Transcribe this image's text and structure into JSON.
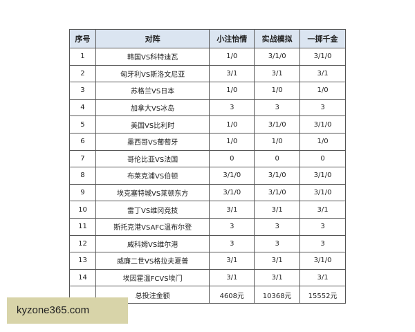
{
  "headers": [
    "序号",
    "对阵",
    "小注怡情",
    "实战模拟",
    "一掷千金"
  ],
  "rows": [
    [
      "1",
      "韩国VS科特迪瓦",
      "1/0",
      "3/1/0",
      "3/1/0"
    ],
    [
      "2",
      "匈牙利VS斯洛文尼亚",
      "3/1",
      "3/1",
      "3/1"
    ],
    [
      "3",
      "苏格兰VS日本",
      "1/0",
      "1/0",
      "1/0"
    ],
    [
      "4",
      "加拿大VS冰岛",
      "3",
      "3",
      "3"
    ],
    [
      "5",
      "美国VS比利时",
      "1/0",
      "3/1/0",
      "3/1/0"
    ],
    [
      "6",
      "墨西哥VS葡萄牙",
      "1/0",
      "1/0",
      "1/0"
    ],
    [
      "7",
      "哥伦比亚VS法国",
      "0",
      "0",
      "0"
    ],
    [
      "8",
      "布莱克浦VS伯顿",
      "3/1/0",
      "3/1/0",
      "3/1/0"
    ],
    [
      "9",
      "埃克塞特城VS莱顿东方",
      "3/1/0",
      "3/1/0",
      "3/1/0"
    ],
    [
      "10",
      "雷丁VS维冈竞技",
      "3/1",
      "3/1",
      "3/1"
    ],
    [
      "11",
      "斯托克港VSAFC温布尔登",
      "3",
      "3",
      "3"
    ],
    [
      "12",
      "威科姆VS维尔港",
      "3",
      "3",
      "3"
    ],
    [
      "13",
      "威廉二世VS格拉夫夏普",
      "3/1",
      "3/1",
      "3/1/0"
    ],
    [
      "14",
      "埃因霍温FCVS埃门",
      "3/1",
      "3/1",
      "3/1"
    ]
  ],
  "total": [
    "",
    "总投注金额",
    "4608元",
    "10368元",
    "15552元"
  ],
  "watermark": "kyzone365.com",
  "colors": {
    "header_bg": "#dbe5f1",
    "watermark_bg": "#d8d4a9"
  }
}
